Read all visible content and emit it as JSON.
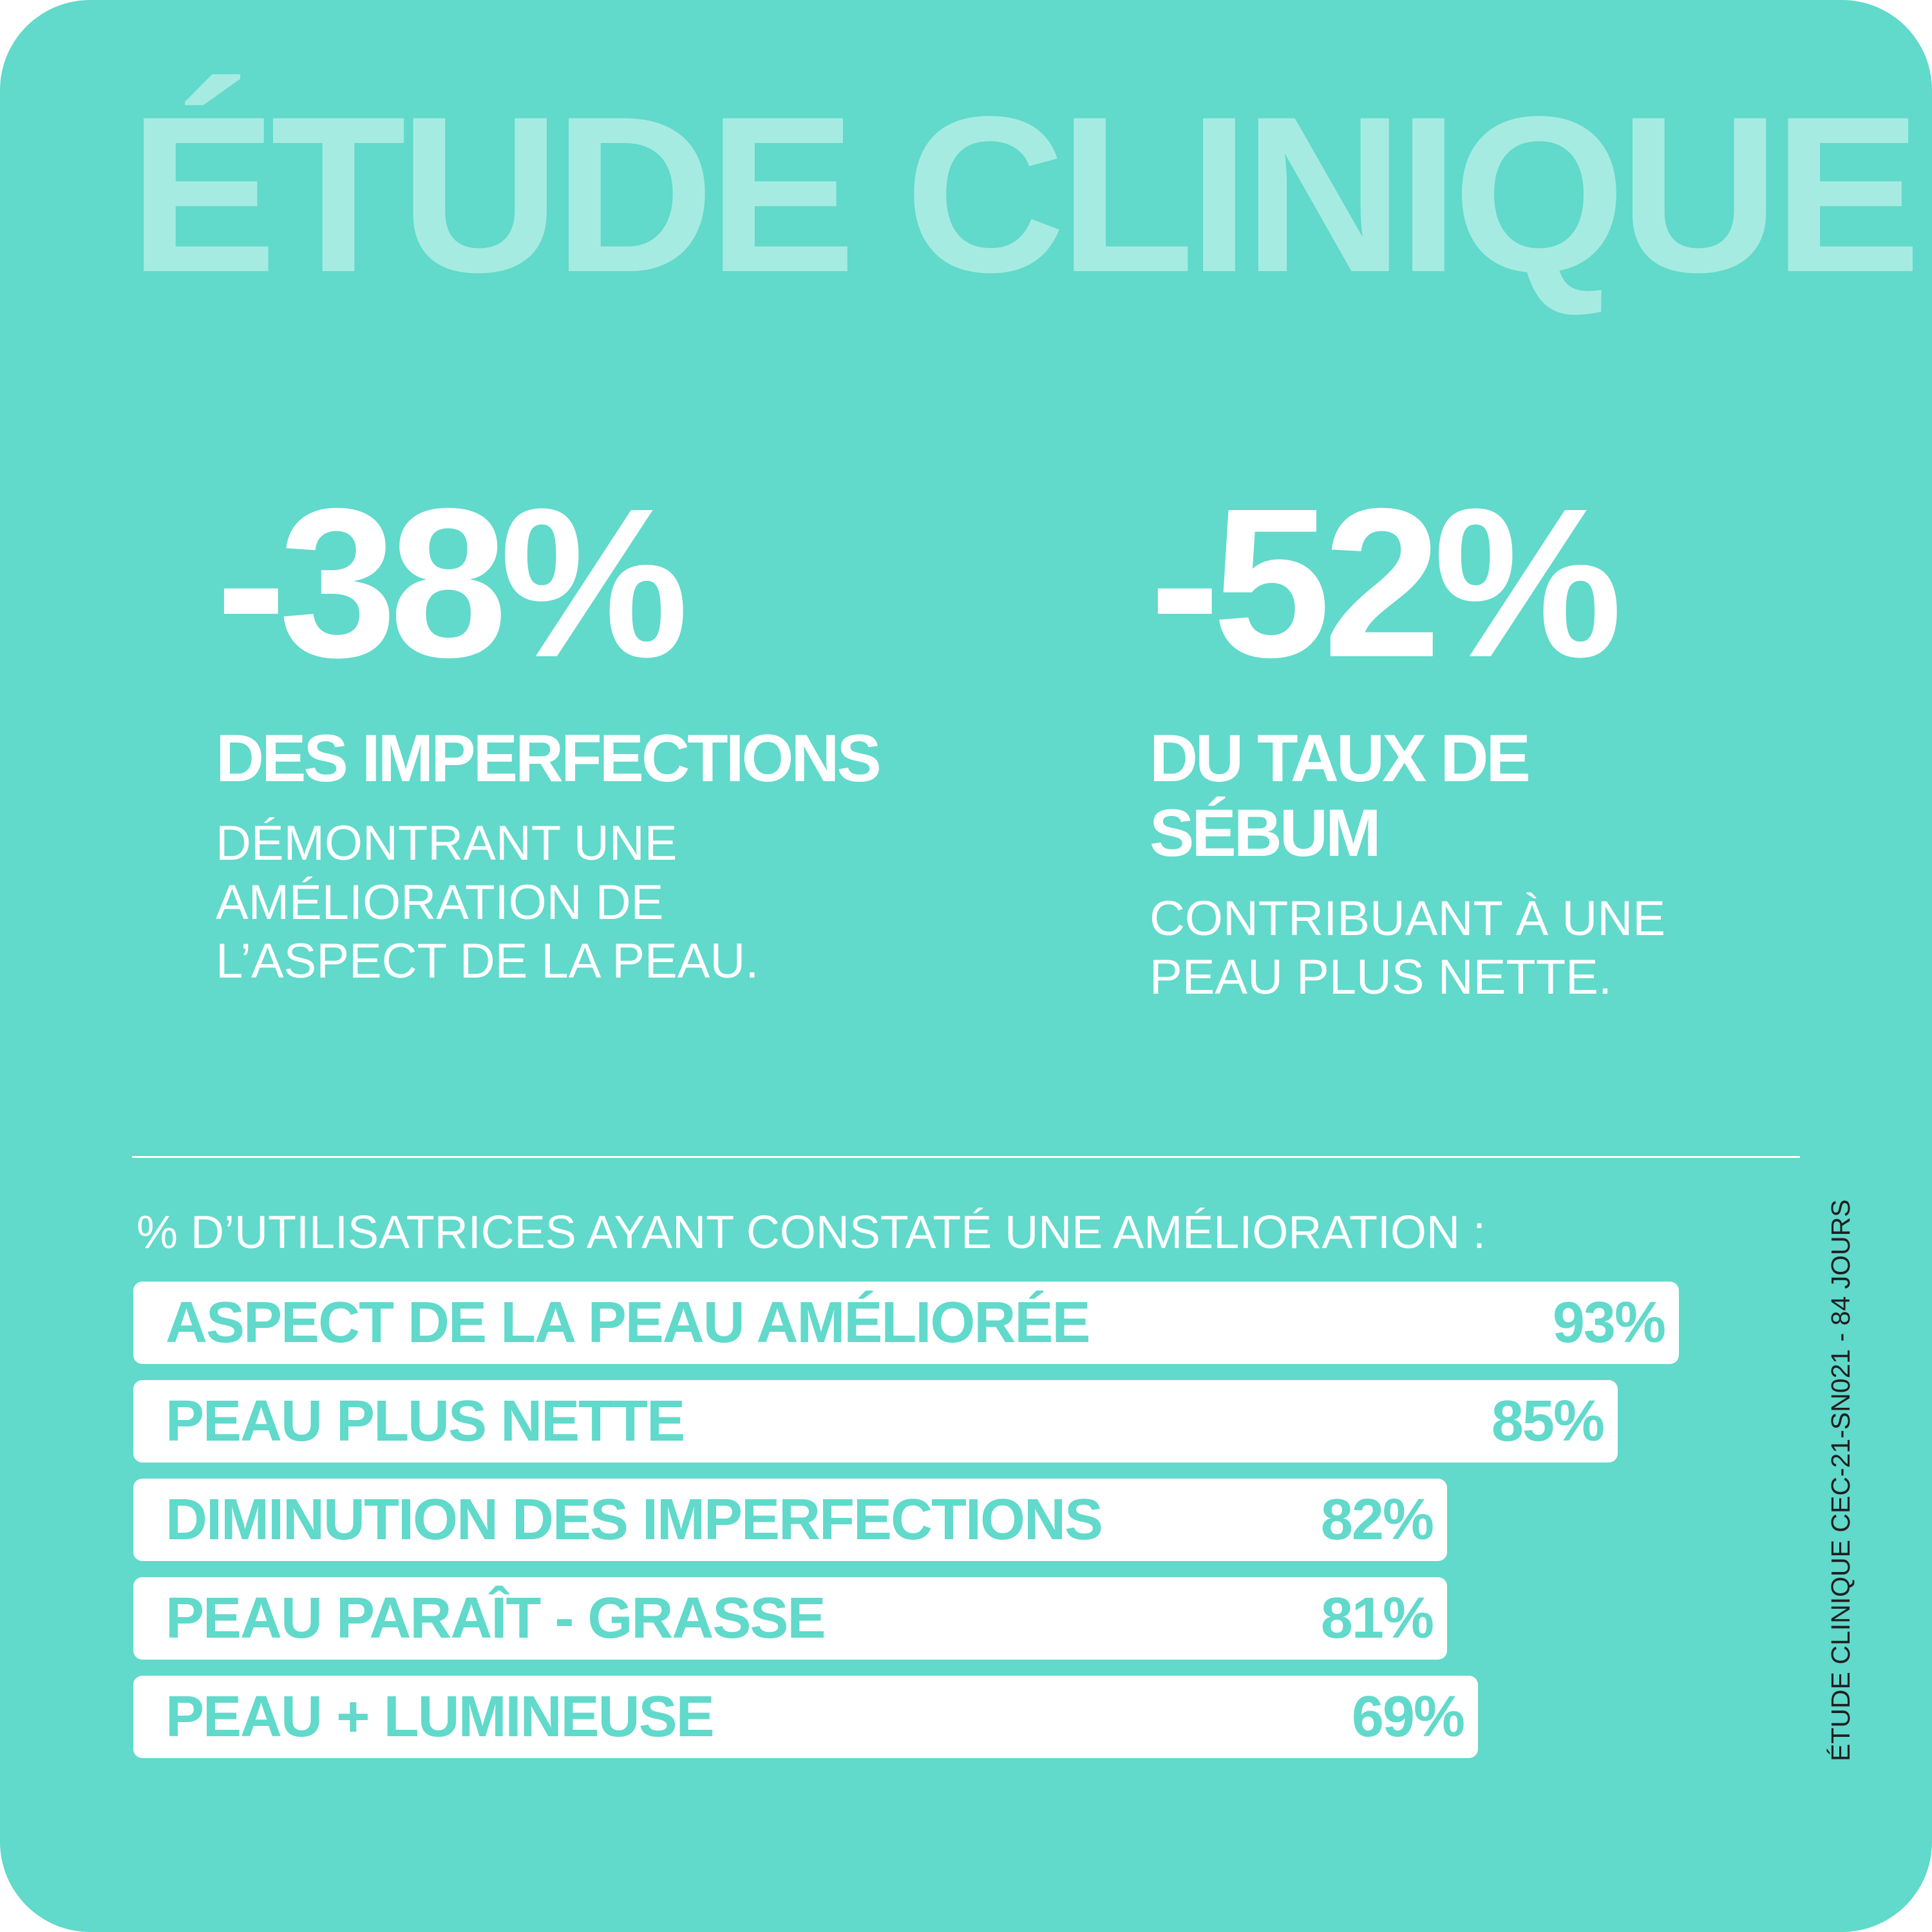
{
  "colors": {
    "background": "#61d9cb",
    "title": "#a6ebe1",
    "accent_text": "#61d9cb",
    "bar_fill": "#ffffff",
    "divider": "#ffffff",
    "stat_text": "#ffffff"
  },
  "title": "ÉTUDE CLINIQUE",
  "stats": [
    {
      "value": "-38%",
      "heading": "DES IMPERFECTIONS",
      "description": "DÉMONTRANT UNE\nAMÉLIORATION DE\nL’ASPECT DE LA PEAU."
    },
    {
      "value": "-52%",
      "heading": "DU TAUX DE SÉBUM",
      "description": "CONTRIBUANT À UNE\nPEAU PLUS NETTE."
    }
  ],
  "section_label": "% D’UTILISATRICES AYANT CONSTATÉ UNE AMÉLIORATION :",
  "side_note": "ÉTUDE CLINIQUE CEC-21-SN021 - 84 JOURS",
  "chart_data": {
    "type": "bar",
    "orientation": "horizontal",
    "categories": [
      "ASPECT DE LA PEAU AMÉLIORÉE",
      "PEAU PLUS NETTE",
      "DIMINUTION DES IMPERFECTIONS",
      "PEAU PARAÎT - GRASSE",
      "PEAU + LUMINEUSE"
    ],
    "values": [
      93,
      85,
      82,
      81,
      69
    ],
    "value_labels": [
      "93%",
      "85%",
      "82%",
      "81%",
      "69%"
    ],
    "title": "% D’UTILISATRICES AYANT CONSTATÉ UNE AMÉLIORATION :",
    "xlabel": "",
    "ylabel": "",
    "grid": false,
    "legend": "none"
  }
}
